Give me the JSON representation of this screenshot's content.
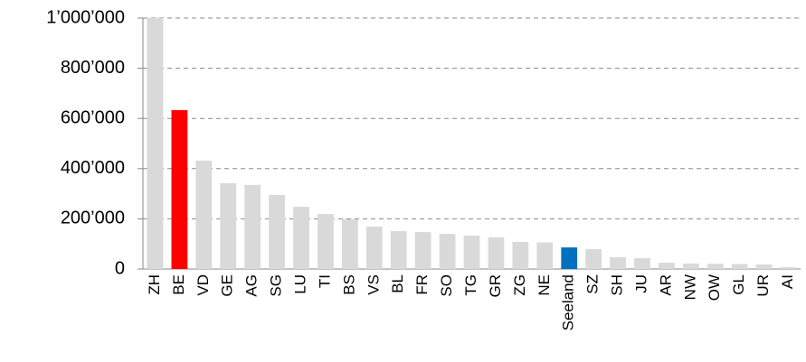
{
  "chart_data": {
    "type": "bar",
    "categories": [
      "ZH",
      "BE",
      "VD",
      "GE",
      "AG",
      "SG",
      "LU",
      "TI",
      "BS",
      "VS",
      "BL",
      "FR",
      "SO",
      "TG",
      "GR",
      "ZG",
      "NE",
      "Seeland",
      "SZ",
      "SH",
      "JU",
      "AR",
      "NW",
      "OW",
      "GL",
      "UR",
      "AI"
    ],
    "values": [
      1000000,
      633000,
      432000,
      342000,
      335000,
      295000,
      248000,
      219000,
      198000,
      169000,
      151000,
      147000,
      140000,
      133000,
      126000,
      108000,
      106000,
      86000,
      79000,
      47000,
      43000,
      25000,
      22000,
      21000,
      20000,
      18000,
      7000
    ],
    "colors": [
      "#d9d9d9",
      "#ff0000",
      "#d9d9d9",
      "#d9d9d9",
      "#d9d9d9",
      "#d9d9d9",
      "#d9d9d9",
      "#d9d9d9",
      "#d9d9d9",
      "#d9d9d9",
      "#d9d9d9",
      "#d9d9d9",
      "#d9d9d9",
      "#d9d9d9",
      "#d9d9d9",
      "#d9d9d9",
      "#d9d9d9",
      "#0070c0",
      "#d9d9d9",
      "#d9d9d9",
      "#d9d9d9",
      "#d9d9d9",
      "#d9d9d9",
      "#d9d9d9",
      "#d9d9d9",
      "#d9d9d9",
      "#d9d9d9"
    ],
    "ylim": [
      0,
      1000000
    ],
    "yticks": [
      0,
      {
        "value": 200000,
        "label": "200’000"
      },
      {
        "value": 400000,
        "label": "400’000"
      },
      {
        "value": 600000,
        "label": "600’000"
      },
      {
        "value": 800000,
        "label": "800’000"
      },
      {
        "value": 1000000,
        "label": "1’000’000"
      }
    ],
    "grid": true
  }
}
